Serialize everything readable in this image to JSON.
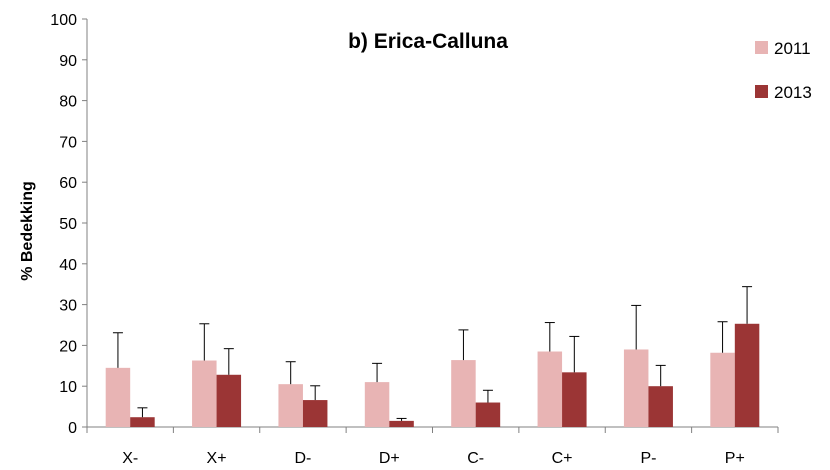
{
  "chart_data": {
    "type": "bar",
    "title": "b) Erica-Calluna",
    "xlabel": "",
    "ylabel": "% Bedekking",
    "ylim": [
      0,
      100
    ],
    "yticks": [
      0,
      10,
      20,
      30,
      40,
      50,
      60,
      70,
      80,
      90,
      100
    ],
    "categories": [
      "X-",
      "X+",
      "D-",
      "D+",
      "C-",
      "C+",
      "P-",
      "P+"
    ],
    "series": [
      {
        "name": "2011",
        "color": "#e8b4b4",
        "values": [
          14.5,
          16.3,
          10.5,
          11.0,
          16.4,
          18.5,
          19.0,
          18.2
        ],
        "error": [
          8.6,
          9.0,
          5.5,
          4.6,
          7.4,
          7.1,
          10.8,
          7.6
        ]
      },
      {
        "name": "2013",
        "color": "#9b3535",
        "values": [
          2.4,
          12.8,
          6.6,
          1.5,
          6.0,
          13.4,
          10.0,
          25.3
        ],
        "error": [
          2.3,
          6.4,
          3.5,
          0.6,
          3.0,
          8.8,
          5.1,
          9.1
        ]
      }
    ],
    "grid": false,
    "legend_position": "right"
  }
}
